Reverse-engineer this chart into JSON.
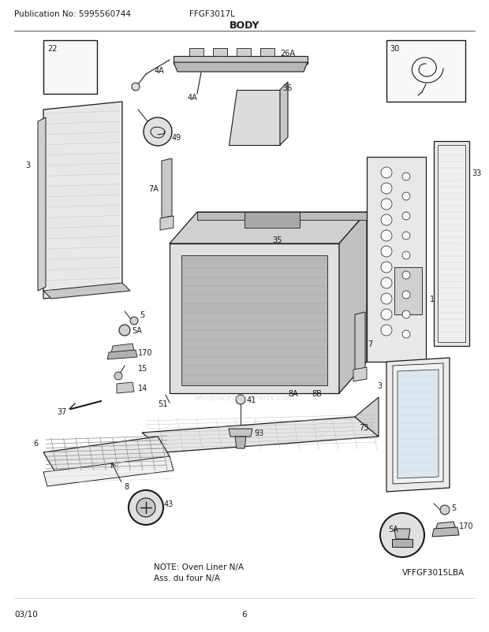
{
  "pub_no": "Publication No: 5995560744",
  "model": "FFGF3017L",
  "title": "BODY",
  "date": "03/10",
  "page": "6",
  "part_no": "VFFGF3015LBA",
  "note_line1": "NOTE: Oven Liner N/A",
  "note_line2": "Ass. du four N/A",
  "watermark": "eReplacementParts.com",
  "bg_color": "#ffffff",
  "text_color": "#2a2a2a",
  "figsize": [
    6.2,
    8.03
  ],
  "dpi": 100
}
